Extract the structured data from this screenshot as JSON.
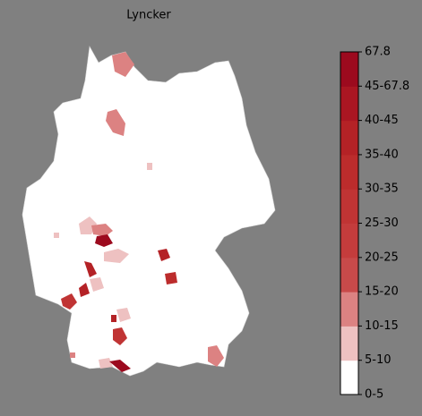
{
  "title": "Lyncker",
  "colorbar": {
    "ticks": [
      "0-5",
      "5-10",
      "10-15",
      "15-20",
      "20-25",
      "25-30",
      "30-35",
      "35-40",
      "40-45",
      "45-67.8",
      "67.8"
    ],
    "colors": [
      "#ffffff",
      "#eec1c1",
      "#dc8282",
      "#c84a4a",
      "#c43c3c",
      "#c03434",
      "#bc2c2c",
      "#b42226",
      "#aa1622",
      "#9c0a1e"
    ]
  }
}
